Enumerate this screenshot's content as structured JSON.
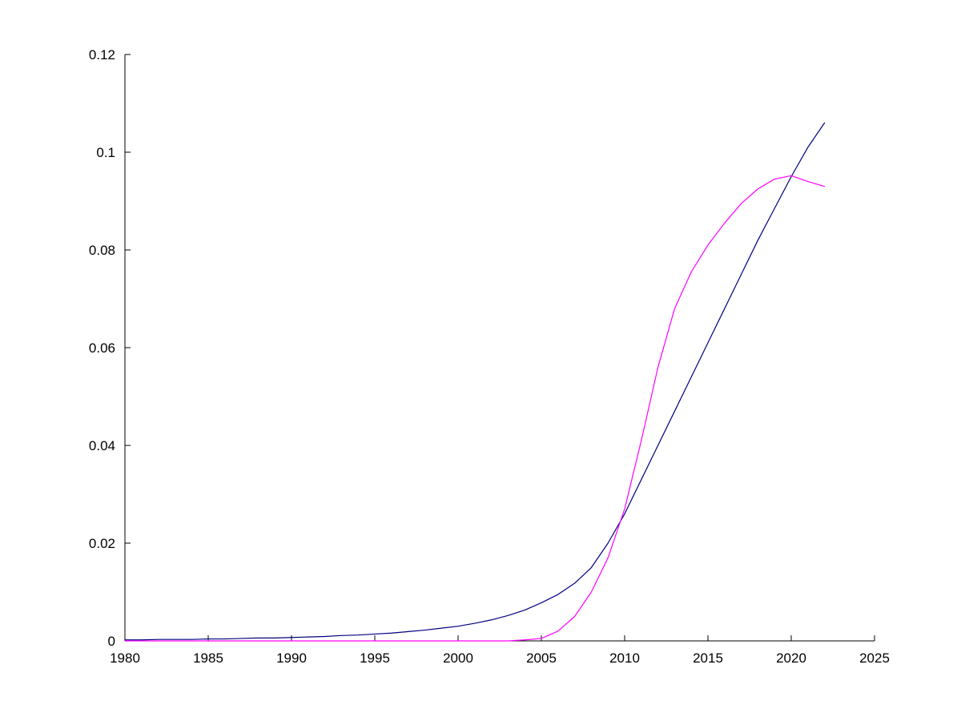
{
  "figure": {
    "background": "#ffffff",
    "axis_color": "#000000"
  },
  "chart_data": {
    "type": "line",
    "title": "",
    "xlabel": "",
    "ylabel": "",
    "grid": false,
    "legend": null,
    "xlim": [
      1980,
      2025
    ],
    "ylim": [
      0,
      0.12
    ],
    "x_ticks": [
      1980,
      1985,
      1990,
      1995,
      2000,
      2005,
      2010,
      2015,
      2020,
      2025
    ],
    "x_tick_labels": [
      "1980",
      "1985",
      "1990",
      "1995",
      "2000",
      "2005",
      "2010",
      "2015",
      "2020",
      "2025"
    ],
    "y_ticks": [
      0,
      0.02,
      0.04,
      0.06,
      0.08,
      0.1,
      0.12
    ],
    "y_tick_labels": [
      "0",
      "0.02",
      "0.04",
      "0.06",
      "0.08",
      "0.1",
      "0.12"
    ],
    "series": [
      {
        "name": "blue-curve",
        "color": "#000080",
        "x": [
          1980,
          1981,
          1982,
          1983,
          1984,
          1985,
          1986,
          1987,
          1988,
          1989,
          1990,
          1991,
          1992,
          1993,
          1994,
          1995,
          1996,
          1997,
          1998,
          1999,
          2000,
          2001,
          2002,
          2003,
          2004,
          2005,
          2006,
          2007,
          2008,
          2009,
          2010,
          2011,
          2012,
          2013,
          2014,
          2015,
          2016,
          2017,
          2018,
          2019,
          2020,
          2021,
          2022
        ],
        "y": [
          0.0002,
          0.0002,
          0.0003,
          0.0003,
          0.0003,
          0.0004,
          0.0004,
          0.0005,
          0.0006,
          0.0006,
          0.0007,
          0.0008,
          0.0009,
          0.0011,
          0.0012,
          0.0014,
          0.0016,
          0.0019,
          0.0022,
          0.0026,
          0.003,
          0.0036,
          0.0043,
          0.0052,
          0.0063,
          0.0078,
          0.0095,
          0.0118,
          0.015,
          0.02,
          0.026,
          0.033,
          0.04,
          0.047,
          0.054,
          0.061,
          0.068,
          0.075,
          0.082,
          0.0885,
          0.095,
          0.101,
          0.106
        ]
      },
      {
        "name": "magenta-curve",
        "color": "#FF00FF",
        "x": [
          1980,
          1981,
          1982,
          1983,
          1984,
          1985,
          1986,
          1987,
          1988,
          1989,
          1990,
          1991,
          1992,
          1993,
          1994,
          1995,
          1996,
          1997,
          1998,
          1999,
          2000,
          2001,
          2002,
          2003,
          2004,
          2005,
          2006,
          2007,
          2008,
          2009,
          2010,
          2011,
          2012,
          2013,
          2014,
          2015,
          2016,
          2017,
          2018,
          2019,
          2020,
          2021,
          2022
        ],
        "y": [
          0,
          0,
          0,
          0,
          0,
          0,
          0,
          0,
          0,
          0,
          0,
          0,
          0,
          0,
          0,
          0,
          0,
          0,
          0,
          0,
          0,
          0,
          0,
          0,
          0.0002,
          0.0005,
          0.002,
          0.005,
          0.01,
          0.017,
          0.027,
          0.041,
          0.056,
          0.068,
          0.0755,
          0.081,
          0.0855,
          0.0895,
          0.0925,
          0.0945,
          0.0952,
          0.094,
          0.093
        ]
      }
    ]
  }
}
